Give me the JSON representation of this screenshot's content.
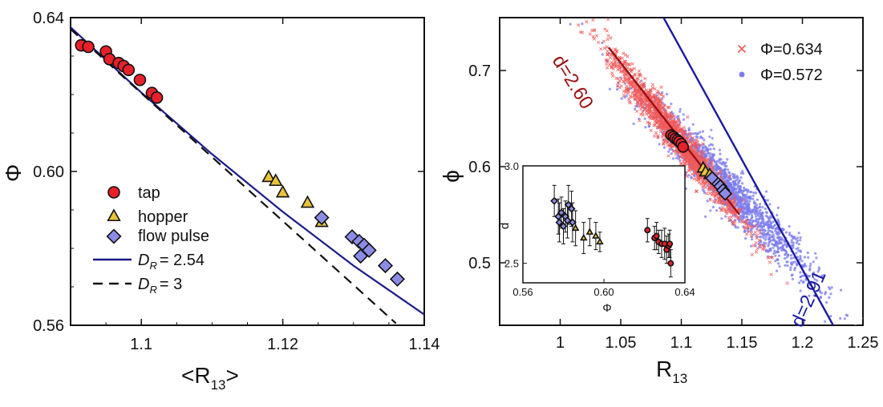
{
  "chart_data": [
    {
      "type": "scatter",
      "panel": "left",
      "xlabel": "<R",
      "xlabel_sub": "13",
      "xlabel_close": ">",
      "ylabel": "Φ",
      "xlim": [
        1.09,
        1.14
      ],
      "ylim": [
        0.56,
        0.64
      ],
      "xticks": [
        1.1,
        1.12,
        1.14
      ],
      "xtick_labels": [
        "1.1",
        "1.12",
        "1.14"
      ],
      "yticks": [
        0.56,
        0.6,
        0.64
      ],
      "ytick_labels": [
        "0.56",
        "0.60",
        "0.64"
      ],
      "series": [
        {
          "name": "tap",
          "marker": "circle",
          "color": "#e8202a",
          "x": [
            1.0915,
            1.0925,
            1.095,
            1.0955,
            1.0968,
            1.0975,
            1.0982,
            1.0998,
            1.1015,
            1.1022
          ],
          "y": [
            0.6328,
            0.6324,
            0.6312,
            0.6292,
            0.6282,
            0.6274,
            0.6264,
            0.6238,
            0.6204,
            0.6192
          ]
        },
        {
          "name": "hopper",
          "marker": "triangle",
          "color": "#e8c33a",
          "x": [
            1.118,
            1.119,
            1.12,
            1.1235,
            1.1255
          ],
          "y": [
            0.5985,
            0.5975,
            0.5945,
            0.5918,
            0.5868
          ]
        },
        {
          "name": "flow pulse",
          "marker": "diamond",
          "color": "#8c8ce8",
          "x": [
            1.1255,
            1.1298,
            1.1308,
            1.1315,
            1.1322,
            1.131,
            1.1345,
            1.1362
          ],
          "y": [
            0.588,
            0.583,
            0.5818,
            0.5808,
            0.5795,
            0.578,
            0.5755,
            0.572
          ]
        },
        {
          "name": "D_R = 2.54",
          "type": "line",
          "style": "solid",
          "color": "#1a1a8c",
          "x": [
            1.09,
            1.1,
            1.11,
            1.12,
            1.13,
            1.14
          ],
          "y": [
            0.6375,
            0.6205,
            0.6045,
            0.5895,
            0.5755,
            0.5628
          ]
        },
        {
          "name": "D_R = 3",
          "type": "line",
          "style": "dashed",
          "color": "#111111",
          "x": [
            1.09,
            1.136
          ],
          "y": [
            0.637,
            0.5605
          ]
        }
      ],
      "legend": {
        "position": "center-left",
        "entries": [
          {
            "label": "tap"
          },
          {
            "label": "hopper"
          },
          {
            "label": "flow pulse"
          },
          {
            "label_main": "D",
            "label_sub": "R",
            "label_rest": "= 2.54"
          },
          {
            "label_main": "D",
            "label_sub": "R",
            "label_rest": "= 3"
          }
        ]
      }
    },
    {
      "type": "scatter",
      "panel": "right",
      "xlabel": "R",
      "xlabel_sub": "13",
      "ylabel": "ϕ",
      "xlim": [
        0.95,
        1.25
      ],
      "ylim": [
        0.435,
        0.755
      ],
      "xticks": [
        1,
        1.05,
        1.1,
        1.15,
        1.2,
        1.25
      ],
      "xtick_labels": [
        "1",
        "1.05",
        "1.1",
        "1.15",
        "1.2",
        "1.25"
      ],
      "yticks": [
        0.5,
        0.6,
        0.7
      ],
      "ytick_labels": [
        "0.5",
        "0.6",
        "0.7"
      ],
      "series": [
        {
          "name": "Φ=0.634",
          "marker": "x",
          "color": "#f05a5a",
          "cloud_center": [
            1.095,
            0.632
          ],
          "cloud_slope": -1.55,
          "cloud_spread": [
            0.028,
            0.018
          ]
        },
        {
          "name": "Φ=0.572",
          "marker": "dot",
          "color": "#7b7bec",
          "cloud_center": [
            1.14,
            0.575
          ],
          "cloud_slope": -1.3,
          "cloud_spread": [
            0.035,
            0.024
          ]
        },
        {
          "name": "d=2.60",
          "type": "line",
          "color": "#9a1010",
          "x": [
            1.04,
            1.148
          ],
          "y": [
            0.724,
            0.55
          ]
        },
        {
          "name": "d=2.91",
          "type": "line",
          "color": "#1a1aa0",
          "x": [
            1.07,
            1.232
          ],
          "y": [
            0.79,
            0.42
          ]
        }
      ],
      "markers": [
        {
          "marker": "circle",
          "color": "#e8202a",
          "x": [
            1.0915,
            1.0935,
            1.095,
            1.0968,
            1.0982,
            1.1,
            1.1015
          ],
          "y": [
            0.6328,
            0.6312,
            0.6292,
            0.6278,
            0.6262,
            0.6238,
            0.6205
          ]
        },
        {
          "marker": "triangle",
          "color": "#e8c33a",
          "x": [
            1.118,
            1.12,
            1.1235
          ],
          "y": [
            0.5985,
            0.5945,
            0.5918
          ]
        },
        {
          "marker": "diamond",
          "color": "#8c8ce8",
          "x": [
            1.1255,
            1.1305,
            1.1322,
            1.1345,
            1.1362
          ],
          "y": [
            0.588,
            0.582,
            0.5795,
            0.5755,
            0.572
          ]
        }
      ],
      "line_labels": [
        {
          "text": "d=2.60",
          "color": "#9a1010"
        },
        {
          "text": "d=2.91",
          "color": "#1a1aa0"
        }
      ],
      "legend": {
        "position": "top-right",
        "entries": [
          "Φ=0.634",
          "Φ=0.572"
        ]
      },
      "inset": {
        "xlabel": "Φ",
        "ylabel": "d",
        "xlim": [
          0.56,
          0.64
        ],
        "ylim": [
          2.4,
          3.0
        ],
        "xticks": [
          0.56,
          0.6,
          0.64
        ],
        "xtick_labels": [
          "0.56",
          "0.60",
          "0.64"
        ],
        "yticks": [
          2.5,
          3.0
        ],
        "ytick_labels": [
          "2.5",
          "3.0"
        ],
        "series": [
          {
            "name": "tap",
            "marker": "circle",
            "color": "#e8202a",
            "x": [
              0.6215,
              0.625,
              0.627,
              0.6285,
              0.63,
              0.631,
              0.632,
              0.6325,
              0.626,
              0.633
            ],
            "y": [
              2.67,
              2.63,
              2.61,
              2.6,
              2.6,
              2.57,
              2.59,
              2.6,
              2.64,
              2.5
            ],
            "err": [
              0.06,
              0.06,
              0.06,
              0.07,
              0.08,
              0.07,
              0.06,
              0.07,
              0.07,
              0.07
            ]
          },
          {
            "name": "hopper",
            "marker": "triangle",
            "color": "#e8c33a",
            "x": [
              0.586,
              0.59,
              0.593,
              0.596,
              0.598
            ],
            "y": [
              2.68,
              2.63,
              2.66,
              2.64,
              2.61
            ],
            "err": [
              0.09,
              0.08,
              0.07,
              0.07,
              0.05
            ]
          },
          {
            "name": "flow pulse",
            "marker": "diamond",
            "color": "#8c8ce8",
            "x": [
              0.5755,
              0.5775,
              0.578,
              0.579,
              0.58,
              0.581,
              0.582,
              0.5825,
              0.584,
              0.5845
            ],
            "y": [
              2.82,
              2.74,
              2.71,
              2.76,
              2.69,
              2.74,
              2.72,
              2.8,
              2.78,
              2.71
            ],
            "err": [
              0.08,
              0.09,
              0.1,
              0.08,
              0.09,
              0.08,
              0.09,
              0.1,
              0.09,
              0.1
            ]
          }
        ]
      }
    }
  ]
}
